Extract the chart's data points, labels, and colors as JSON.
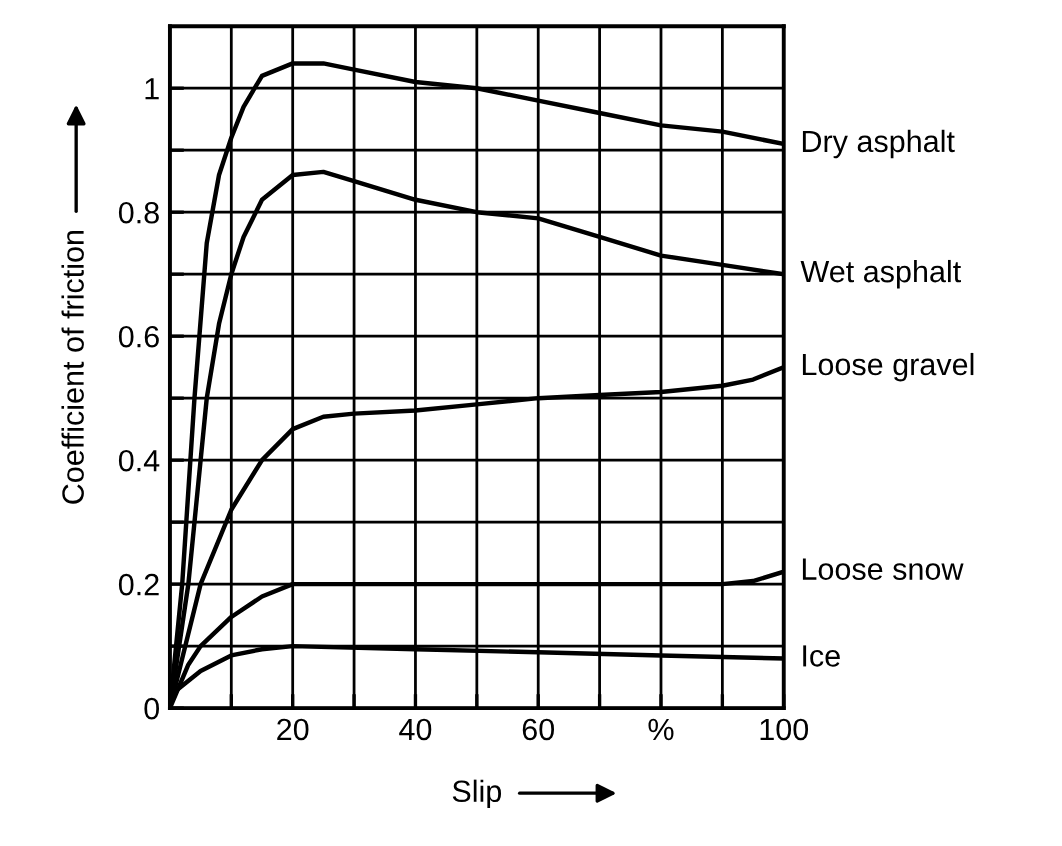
{
  "chart_data": {
    "type": "line",
    "xlabel": "Slip",
    "ylabel": "Coefficient of friction",
    "xlim": [
      0,
      100
    ],
    "ylim": [
      0,
      1.1
    ],
    "xticks": [
      {
        "value": 0,
        "label": null
      },
      {
        "value": 10,
        "label": null
      },
      20,
      {
        "value": 30,
        "label": null
      },
      40,
      {
        "value": 50,
        "label": null
      },
      60,
      {
        "value": 70,
        "label": null
      },
      {
        "value": 80,
        "label": "%"
      },
      {
        "value": 90,
        "label": null
      },
      100
    ],
    "yticks": [
      0,
      {
        "value": 0.1,
        "label": null
      },
      0.2,
      {
        "value": 0.3,
        "label": null
      },
      0.4,
      {
        "value": 0.5,
        "label": null
      },
      0.6,
      {
        "value": 0.7,
        "label": null
      },
      0.8,
      {
        "value": 0.9,
        "label": null
      },
      1
    ],
    "grid": true,
    "legend": false,
    "marker": "none",
    "line_style": "solid",
    "series": [
      {
        "name": "Dry asphalt",
        "color": "#000000",
        "x": [
          0,
          2,
          4,
          6,
          8,
          10,
          12,
          15,
          20,
          25,
          30,
          40,
          50,
          60,
          70,
          80,
          90,
          100
        ],
        "values": [
          0,
          0.2,
          0.5,
          0.75,
          0.86,
          0.92,
          0.97,
          1.02,
          1.04,
          1.04,
          1.03,
          1.01,
          1.0,
          0.98,
          0.96,
          0.94,
          0.93,
          0.91
        ]
      },
      {
        "name": "Wet asphalt",
        "color": "#000000",
        "x": [
          0,
          3,
          6,
          8,
          10,
          12,
          15,
          20,
          25,
          30,
          40,
          50,
          60,
          70,
          80,
          90,
          100
        ],
        "values": [
          0,
          0.2,
          0.5,
          0.62,
          0.7,
          0.76,
          0.82,
          0.86,
          0.865,
          0.85,
          0.82,
          0.8,
          0.79,
          0.76,
          0.73,
          0.715,
          0.7
        ]
      },
      {
        "name": "Loose gravel",
        "color": "#000000",
        "x": [
          0,
          2,
          5,
          10,
          15,
          20,
          25,
          30,
          40,
          50,
          60,
          70,
          80,
          90,
          95,
          100
        ],
        "values": [
          0,
          0.08,
          0.2,
          0.32,
          0.4,
          0.45,
          0.47,
          0.475,
          0.48,
          0.49,
          0.5,
          0.505,
          0.51,
          0.52,
          0.53,
          0.55
        ]
      },
      {
        "name": "Loose snow",
        "color": "#000000",
        "x": [
          0,
          3,
          5,
          10,
          15,
          20,
          30,
          50,
          70,
          90,
          95,
          100
        ],
        "values": [
          0,
          0.07,
          0.1,
          0.147,
          0.18,
          0.2,
          0.2,
          0.2,
          0.2,
          0.2,
          0.205,
          0.22
        ]
      },
      {
        "name": "Ice",
        "color": "#000000",
        "x": [
          0,
          5,
          10,
          15,
          20,
          40,
          60,
          80,
          100
        ],
        "values": [
          0.02,
          0.06,
          0.085,
          0.095,
          0.1,
          0.095,
          0.09,
          0.085,
          0.08
        ]
      }
    ]
  }
}
